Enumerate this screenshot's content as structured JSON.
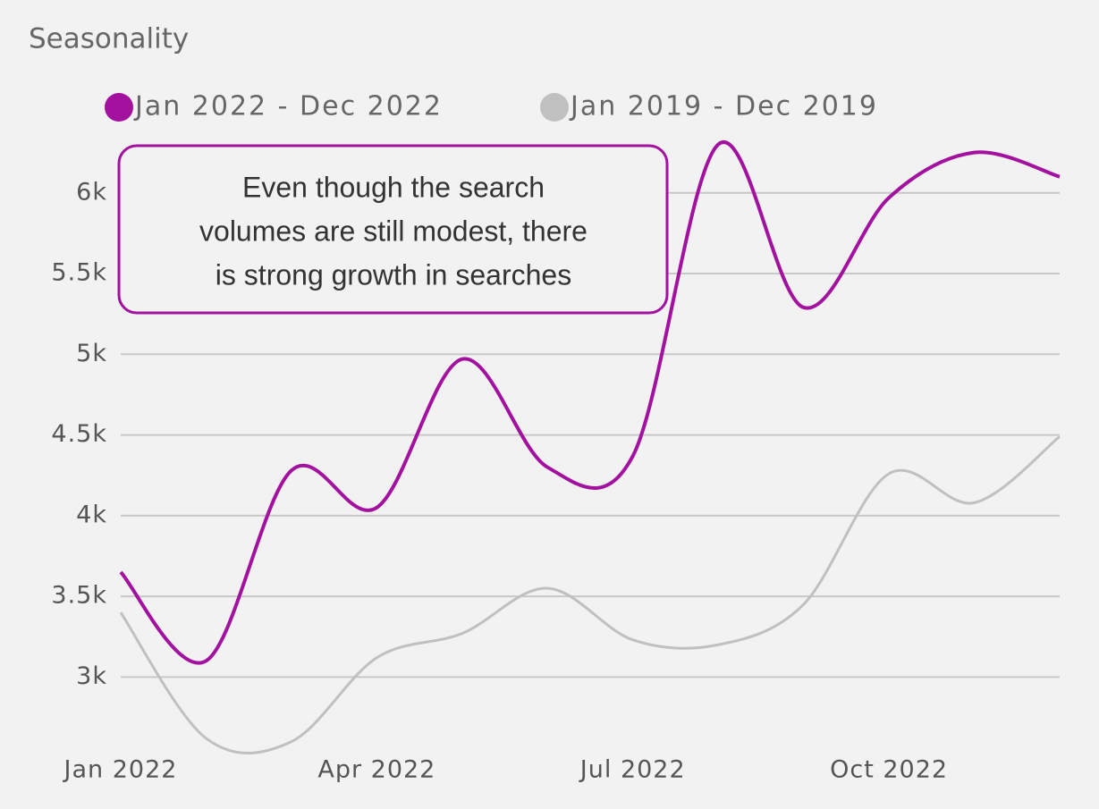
{
  "chart_data": {
    "type": "line",
    "title": "Seasonality",
    "annotation": [
      "Even though the search",
      "volumes are still modest, there",
      "is strong growth in searches"
    ],
    "categories": [
      "Jan 2022",
      null,
      null,
      "Apr 2022",
      null,
      null,
      "Jul 2022",
      null,
      null,
      "Oct 2022",
      null,
      null
    ],
    "series": [
      {
        "name": "Jan 2022 - Dec 2022",
        "color": "#a3129f",
        "values": [
          3650,
          3100,
          4280,
          4050,
          4970,
          4300,
          4370,
          6300,
          5290,
          5970,
          6250,
          6100
        ]
      },
      {
        "name": "Jan 2019 - Dec 2019",
        "color": "#c0c0c0",
        "values": [
          3400,
          2620,
          2600,
          3120,
          3270,
          3550,
          3230,
          3200,
          3450,
          4260,
          4080,
          4490
        ]
      }
    ],
    "ylim": [
      2570,
      6320
    ],
    "yticks": [
      {
        "value": 3000,
        "label": "3k"
      },
      {
        "value": 3500,
        "label": "3.5k"
      },
      {
        "value": 4000,
        "label": "4k"
      },
      {
        "value": 4500,
        "label": "4.5k"
      },
      {
        "value": 5000,
        "label": "5k"
      },
      {
        "value": 5500,
        "label": "5.5k"
      },
      {
        "value": 6000,
        "label": "6k"
      }
    ],
    "grid": true
  }
}
